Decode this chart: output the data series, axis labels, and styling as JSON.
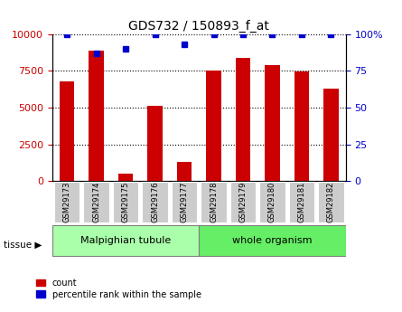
{
  "title": "GDS732 / 150893_f_at",
  "samples": [
    "GSM29173",
    "GSM29174",
    "GSM29175",
    "GSM29176",
    "GSM29177",
    "GSM29178",
    "GSM29179",
    "GSM29180",
    "GSM29181",
    "GSM29182"
  ],
  "counts": [
    6800,
    8900,
    500,
    5100,
    1300,
    7500,
    8400,
    7900,
    7450,
    6300
  ],
  "percentiles": [
    100,
    87,
    90,
    100,
    93,
    100,
    100,
    100,
    100,
    100
  ],
  "tissue_groups": [
    {
      "label": "Malpighian tubule",
      "start": 0,
      "end": 5,
      "color": "#aaffaa"
    },
    {
      "label": "whole organism",
      "start": 5,
      "end": 10,
      "color": "#66ee66"
    }
  ],
  "bar_color": "#cc0000",
  "dot_color": "#0000cc",
  "left_yticks": [
    0,
    2500,
    5000,
    7500,
    10000
  ],
  "right_yticks": [
    0,
    25,
    50,
    75,
    100
  ],
  "ylim_left": [
    0,
    10000
  ],
  "ylim_right": [
    0,
    100
  ],
  "grid_color": "black",
  "tick_label_bg": "#cccccc",
  "tissue_arrow_label": "tissue",
  "legend_count_label": "count",
  "legend_pct_label": "percentile rank within the sample"
}
